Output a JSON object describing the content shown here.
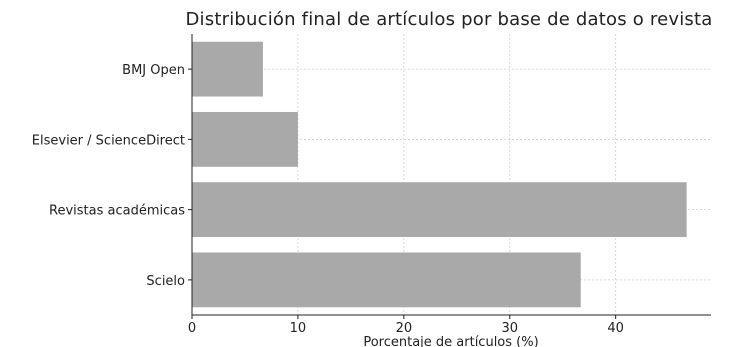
{
  "chart_data": {
    "type": "bar",
    "orientation": "horizontal",
    "title": "Distribución final de artículos por base de datos o revista",
    "xlabel": "Porcentaje de artículos (%)",
    "ylabel": "",
    "categories": [
      "Scielo",
      "Revistas académicas",
      "Elsevier / ScienceDirect",
      "BMJ Open"
    ],
    "values": [
      36.7,
      46.7,
      10.0,
      6.7
    ],
    "xlim": [
      0,
      49
    ],
    "xticks": [
      0,
      10,
      20,
      30,
      40
    ],
    "grid": true,
    "bar_color": "#a9a9a9"
  }
}
